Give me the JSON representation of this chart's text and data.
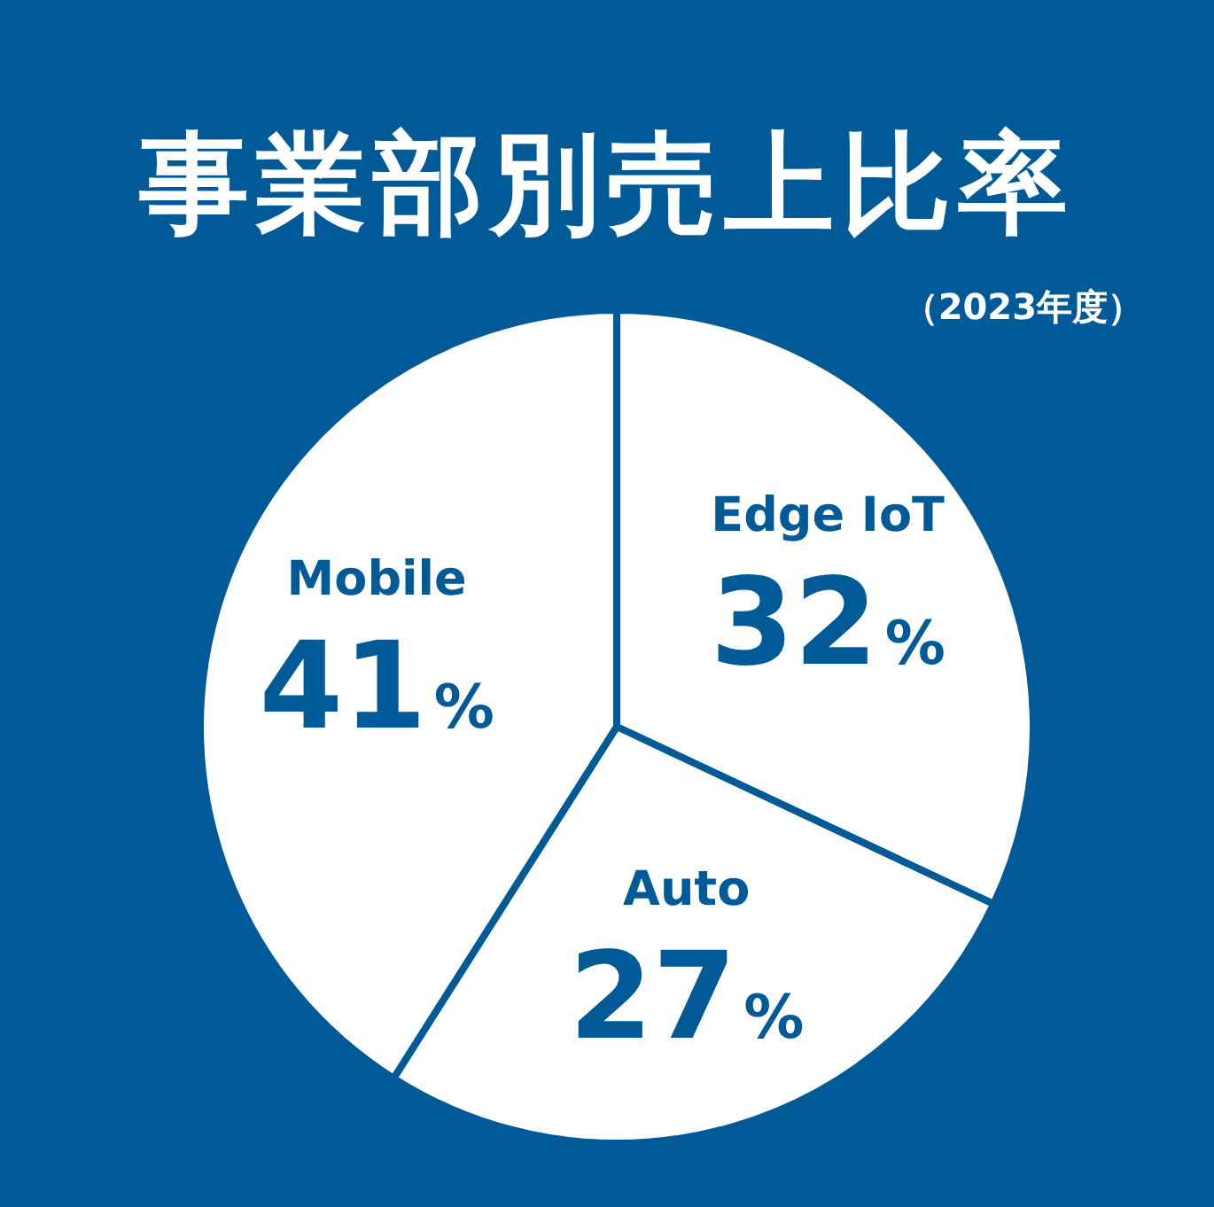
{
  "chart_data": {
    "type": "pie",
    "title": "事業部別売上比率",
    "subtitle": "（2023年度）",
    "categories": [
      "Edge IoT",
      "Auto",
      "Mobile"
    ],
    "values": [
      32,
      27,
      41
    ],
    "colors": [
      "#ffffff",
      "#ffffff",
      "#ffffff"
    ],
    "value_labels": [
      "32%",
      "27%",
      "41%"
    ]
  }
}
